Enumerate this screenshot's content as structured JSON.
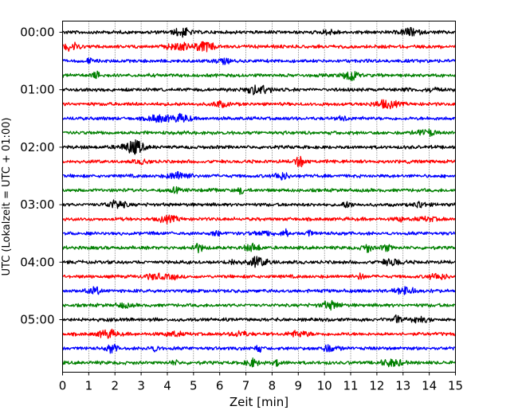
{
  "chart_data": {
    "type": "line",
    "title": "",
    "xlabel": "Zeit  [min]",
    "ylabel": "UTC (Lokalzeit = UTC + 01:00)",
    "xlim": [
      0,
      15
    ],
    "x_ticks": [
      "0",
      "1",
      "2",
      "3",
      "4",
      "5",
      "6",
      "7",
      "8",
      "9",
      "10",
      "11",
      "12",
      "13",
      "14",
      "15"
    ],
    "y_tick_labels": [
      "00:00",
      "01:00",
      "02:00",
      "03:00",
      "04:00",
      "05:00"
    ],
    "traces_per_hour": 4,
    "trace_count": 24,
    "trace_duration_min": 15,
    "trace_colors": [
      "#000000",
      "#ff0000",
      "#0000ff",
      "#008000"
    ],
    "grid": "vertical dotted lines at each minute",
    "legend": "none"
  }
}
